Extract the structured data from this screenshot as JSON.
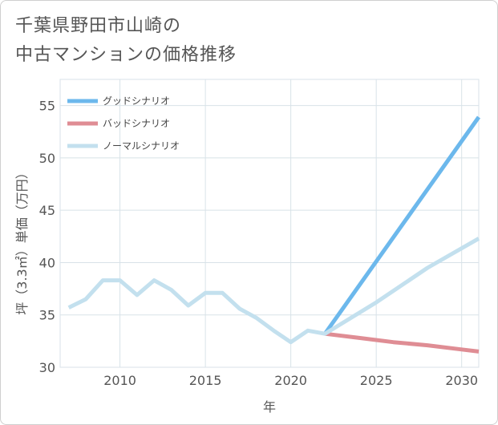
{
  "chart_data": {
    "type": "line",
    "title_line1": "千葉県野田市山崎の",
    "title_line2": "中古マンションの価格推移",
    "xlabel": "年",
    "ylabel": "坪（3.3㎡）単価（万円）",
    "xlim": [
      2006.5,
      2031
    ],
    "ylim": [
      30,
      57.5
    ],
    "x_ticks": [
      2010,
      2015,
      2020,
      2025,
      2030
    ],
    "y_ticks": [
      30,
      35,
      40,
      45,
      50,
      55
    ],
    "grid": true,
    "legend_position": "top-left",
    "series": [
      {
        "name": "グッドシナリオ",
        "color": "#6cb8ec",
        "points": [
          [
            2022,
            33.2
          ],
          [
            2031,
            53.9
          ]
        ]
      },
      {
        "name": "バッドシナリオ",
        "color": "#df8d94",
        "points": [
          [
            2022,
            33.2
          ],
          [
            2024,
            32.8
          ],
          [
            2026,
            32.4
          ],
          [
            2028,
            32.1
          ],
          [
            2030,
            31.7
          ],
          [
            2031,
            31.5
          ]
        ]
      },
      {
        "name": "ノーマルシナリオ",
        "color": "#c3e0ee",
        "points": [
          [
            2007,
            35.7
          ],
          [
            2008,
            36.5
          ],
          [
            2009,
            38.3
          ],
          [
            2010,
            38.3
          ],
          [
            2011,
            36.9
          ],
          [
            2012,
            38.3
          ],
          [
            2013,
            37.4
          ],
          [
            2014,
            35.9
          ],
          [
            2015,
            37.1
          ],
          [
            2016,
            37.1
          ],
          [
            2017,
            35.6
          ],
          [
            2018,
            34.7
          ],
          [
            2019,
            33.5
          ],
          [
            2020,
            32.4
          ],
          [
            2021,
            33.5
          ],
          [
            2022,
            33.2
          ],
          [
            2025,
            36.2
          ],
          [
            2028,
            39.5
          ],
          [
            2031,
            42.3
          ]
        ]
      }
    ]
  }
}
